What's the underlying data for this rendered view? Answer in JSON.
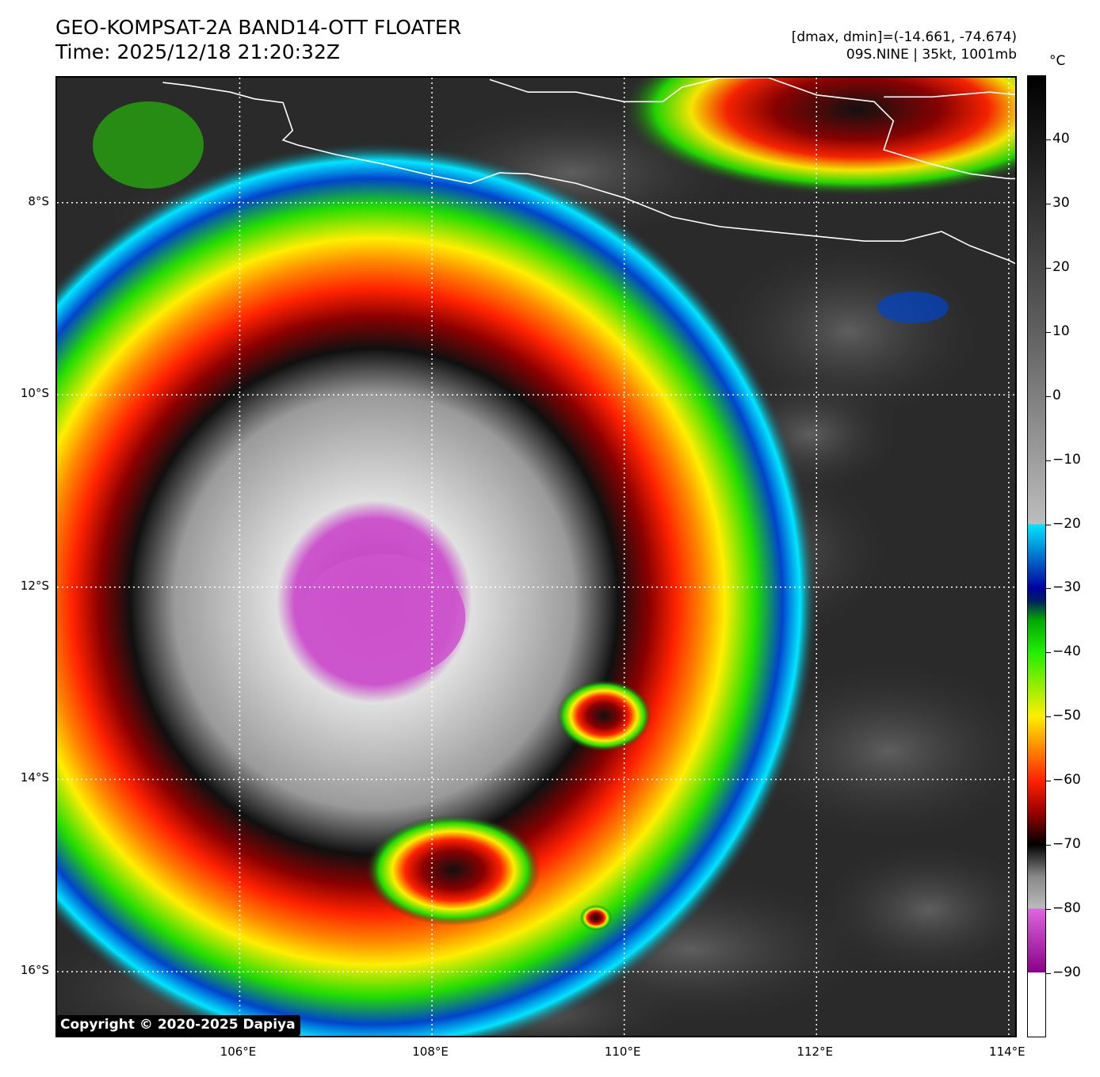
{
  "header": {
    "title_line1": "GEO-KOMPSAT-2A BAND14-OTT FLOATER",
    "title_line2": "Time: 2025/12/18 21:20:32Z",
    "range_text": "[dmax, dmin]=(-14.661, -74.674)",
    "storm_text": "09S.NINE | 35kt, 1001mb"
  },
  "map": {
    "lon_min": 104.1,
    "lon_max": 114.1,
    "lat_max": -6.7,
    "lat_min": -16.7,
    "lat_ticks": [
      {
        "value": -8,
        "label": "8°S"
      },
      {
        "value": -10,
        "label": "10°S"
      },
      {
        "value": -12,
        "label": "12°S"
      },
      {
        "value": -14,
        "label": "14°S"
      },
      {
        "value": -16,
        "label": "16°S"
      }
    ],
    "lon_ticks": [
      {
        "value": 106,
        "label": "106°E"
      },
      {
        "value": 108,
        "label": "108°E"
      },
      {
        "value": 110,
        "label": "110°E"
      },
      {
        "value": 112,
        "label": "112°E"
      },
      {
        "value": 114,
        "label": "114°E"
      }
    ],
    "storm_center": {
      "lon": 107.4,
      "lat": -12.15
    },
    "coastlines": [
      [
        [
          105.2,
          -6.75
        ],
        [
          105.45,
          -6.78
        ],
        [
          105.9,
          -6.85
        ],
        [
          106.15,
          -6.92
        ],
        [
          106.45,
          -6.96
        ],
        [
          106.55,
          -7.25
        ],
        [
          106.45,
          -7.35
        ],
        [
          106.6,
          -7.4
        ],
        [
          107.0,
          -7.5
        ],
        [
          107.5,
          -7.6
        ],
        [
          108.0,
          -7.72
        ],
        [
          108.4,
          -7.8
        ],
        [
          108.7,
          -7.69
        ],
        [
          109.0,
          -7.7
        ],
        [
          109.5,
          -7.8
        ],
        [
          110.0,
          -7.95
        ],
        [
          110.5,
          -8.15
        ],
        [
          111.0,
          -8.25
        ],
        [
          111.5,
          -8.3
        ],
        [
          112.0,
          -8.35
        ],
        [
          112.5,
          -8.4
        ],
        [
          112.9,
          -8.4
        ],
        [
          113.3,
          -8.3
        ],
        [
          113.6,
          -8.45
        ],
        [
          114.0,
          -8.6
        ],
        [
          114.1,
          -8.65
        ]
      ],
      [
        [
          108.6,
          -6.72
        ],
        [
          109.0,
          -6.85
        ],
        [
          109.5,
          -6.85
        ],
        [
          110.0,
          -6.95
        ],
        [
          110.4,
          -6.95
        ],
        [
          110.6,
          -6.8
        ],
        [
          111.0,
          -6.7
        ],
        [
          111.5,
          -6.7
        ],
        [
          112.0,
          -6.88
        ],
        [
          112.6,
          -6.95
        ],
        [
          112.8,
          -7.15
        ],
        [
          112.7,
          -7.45
        ],
        [
          113.2,
          -7.6
        ],
        [
          113.6,
          -7.7
        ],
        [
          114.0,
          -7.75
        ],
        [
          114.1,
          -7.75
        ]
      ],
      [
        [
          112.7,
          -6.9
        ],
        [
          113.2,
          -6.9
        ],
        [
          113.8,
          -6.85
        ],
        [
          114.1,
          -6.88
        ]
      ]
    ],
    "colors": {
      "background_gray": "#2a2a2a",
      "cold_cloud_gray": "#d8d8d8",
      "dark_red": "#8b0000",
      "red": "#ff2200",
      "orange": "#ff8800",
      "yellow": "#ffee00",
      "green": "#22dd00",
      "blue": "#0044cc",
      "cyan": "#00e5ff",
      "magenta": "#cc55cc",
      "coastline": "#ffffff"
    }
  },
  "colorbar": {
    "unit": "°C",
    "vmin": -100,
    "vmax": 50,
    "ticks": [
      40,
      30,
      20,
      10,
      0,
      -10,
      -20,
      -30,
      -40,
      -50,
      -60,
      -70,
      -80,
      -90
    ],
    "tick_labels": [
      "40",
      "30",
      "20",
      "10",
      "0",
      "−10",
      "−20",
      "−30",
      "−40",
      "−50",
      "−60",
      "−70",
      "−80",
      "−90"
    ]
  },
  "footer": {
    "copyright": "Copyright © 2020-2025 Dapiya"
  }
}
